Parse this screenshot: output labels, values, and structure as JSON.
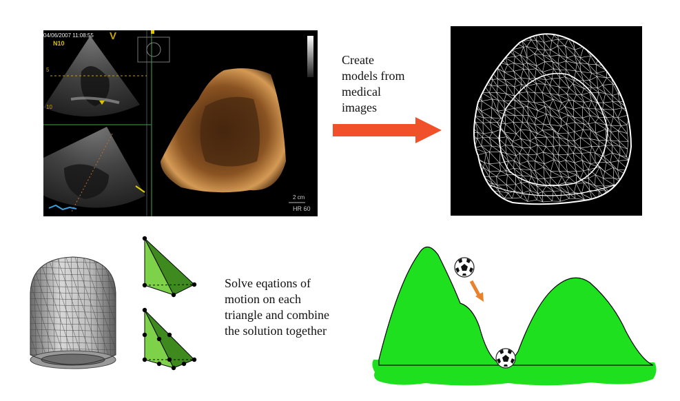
{
  "echo": {
    "timestamp": "04/06/2007 11:08:55",
    "view_marker": "V",
    "probe_label": "N10",
    "scale_label": "2 cm",
    "hr_label": "HR 60"
  },
  "caption_top": {
    "lines": [
      "Create",
      "models from",
      "medical",
      "images"
    ]
  },
  "caption_bottom": {
    "lines": [
      "Solve eqations of",
      "motion on each",
      "triangle and combine",
      "the solution together"
    ]
  },
  "colors": {
    "arrow": "#f0502a",
    "hill": "#1ee01e",
    "element_light": "#7ed24a",
    "element_dark": "#3e8a1e",
    "ball_arrow": "#e8822e"
  },
  "icons": {
    "ball_top": "soccer-ball-icon",
    "ball_bottom": "soccer-ball-icon"
  }
}
